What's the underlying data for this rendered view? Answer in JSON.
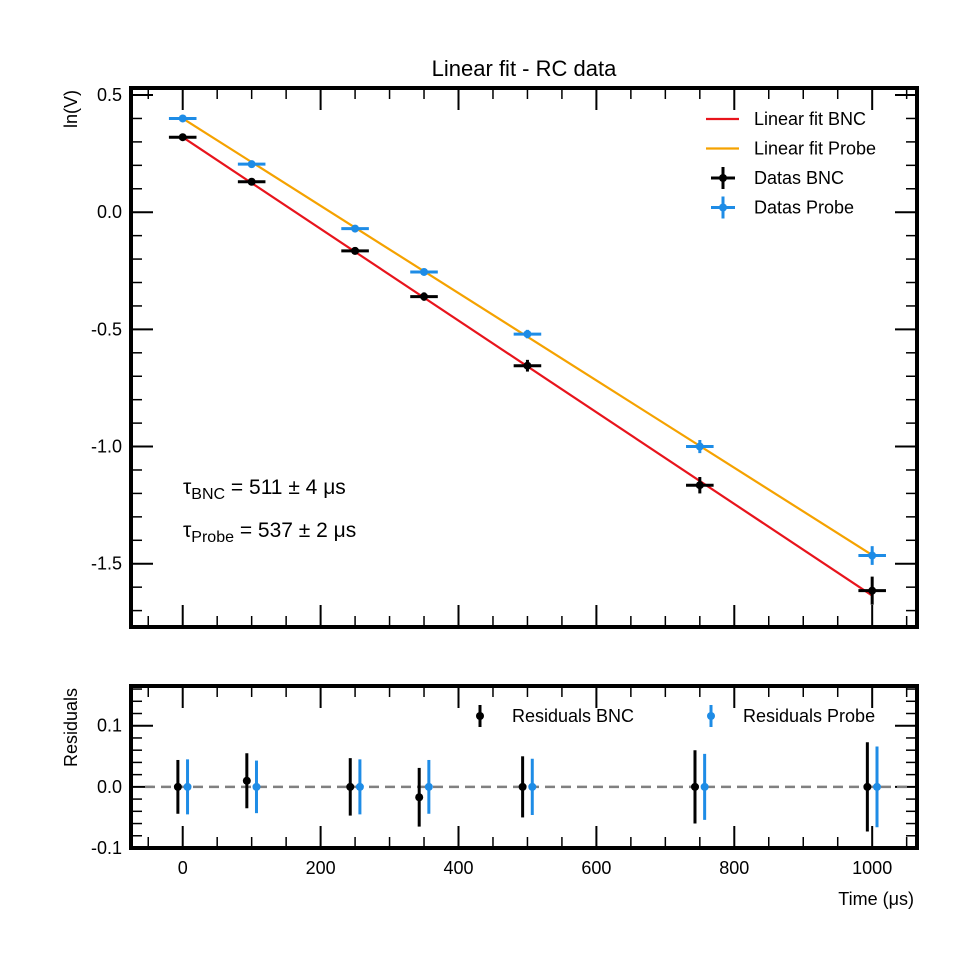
{
  "chart_data": [
    {
      "type": "scatter",
      "title": "Linear fit - RC data",
      "xlabel": "",
      "ylabel": "ln(V)",
      "xlim": [
        -75,
        1065
      ],
      "ylim": [
        -1.77,
        0.53
      ],
      "yticks": [
        0.5,
        0.0,
        -0.5,
        -1.0,
        -1.5
      ],
      "ytick_labels": [
        "0.5",
        "0.0",
        "-0.5",
        "-1.0",
        "-1.5"
      ],
      "legend_position": "top-right",
      "series": [
        {
          "name": "Linear fit BNC",
          "kind": "line",
          "color": "#e8141c",
          "x": [
            0,
            1000
          ],
          "y": [
            0.32,
            -1.636
          ]
        },
        {
          "name": "Linear fit Probe",
          "kind": "line",
          "color": "#f5a200",
          "x": [
            0,
            1000
          ],
          "y": [
            0.4,
            -1.463
          ]
        },
        {
          "name": "Datas BNC",
          "kind": "errorbar",
          "color": "#000000",
          "x": [
            0,
            100,
            250,
            350,
            500,
            750,
            1000
          ],
          "y": [
            0.32,
            0.13,
            -0.165,
            -0.36,
            -0.655,
            -1.165,
            -1.615
          ],
          "xerr": [
            20,
            20,
            20,
            20,
            20,
            20,
            20
          ],
          "yerr": [
            0.01,
            0.012,
            0.016,
            0.018,
            0.025,
            0.035,
            0.06
          ]
        },
        {
          "name": "Datas Probe",
          "kind": "errorbar",
          "color": "#1e8ce6",
          "x": [
            0,
            100,
            250,
            350,
            500,
            750,
            1000
          ],
          "y": [
            0.4,
            0.205,
            -0.07,
            -0.255,
            -0.52,
            -1.0,
            -1.465
          ],
          "xerr": [
            20,
            20,
            20,
            20,
            20,
            20,
            20
          ],
          "yerr": [
            0.008,
            0.01,
            0.012,
            0.014,
            0.018,
            0.028,
            0.04
          ]
        }
      ],
      "annotations": [
        {
          "symbol": "τ",
          "subscript": "BNC",
          "text": " = 511 ± 4 μs"
        },
        {
          "symbol": "τ",
          "subscript": "Probe",
          "text": " = 537 ± 2 μs"
        }
      ]
    },
    {
      "type": "scatter",
      "title": "",
      "xlabel": "Time (μs)",
      "ylabel": "Residuals",
      "xlim": [
        -75,
        1065
      ],
      "ylim": [
        -0.1,
        0.165
      ],
      "xticks": [
        0,
        200,
        400,
        600,
        800,
        1000
      ],
      "xtick_labels": [
        "0",
        "200",
        "400",
        "600",
        "800",
        "1000"
      ],
      "yticks": [
        0.1,
        0.0,
        -0.1
      ],
      "ytick_labels": [
        "0.1",
        "0.0",
        "-0.1"
      ],
      "reference_line": {
        "y": 0,
        "style": "dashed",
        "color": "#808080"
      },
      "legend_position": "top-right",
      "series": [
        {
          "name": "Residuals BNC",
          "kind": "errorbar",
          "color": "#000000",
          "x": [
            -7,
            93,
            243,
            343,
            493,
            743,
            993
          ],
          "y": [
            0.0,
            0.01,
            0.0,
            -0.017,
            0.0,
            0.0,
            0.0
          ],
          "yerr": [
            0.044,
            0.045,
            0.047,
            0.048,
            0.05,
            0.06,
            0.073
          ]
        },
        {
          "name": "Residuals Probe",
          "kind": "errorbar",
          "color": "#1e8ce6",
          "x": [
            7,
            107,
            257,
            357,
            507,
            757,
            1007
          ],
          "y": [
            0.0,
            0.0,
            0.0,
            0.0,
            0.0,
            0.0,
            0.0
          ],
          "yerr": [
            0.045,
            0.043,
            0.045,
            0.044,
            0.046,
            0.054,
            0.066
          ]
        }
      ]
    }
  ]
}
